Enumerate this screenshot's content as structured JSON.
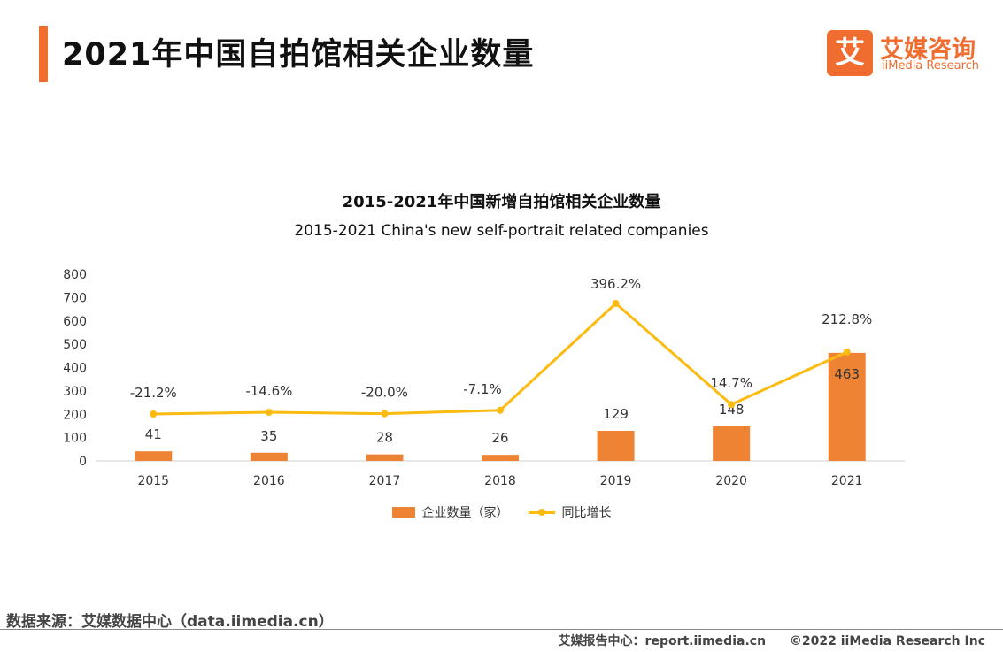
{
  "header": {
    "title": "2021年中国自拍馆相关企业数量"
  },
  "brand": {
    "mark": "艾",
    "name_cn": "艾媒咨询",
    "name_en": "iiMedia Research"
  },
  "chart_data": {
    "type": "bar",
    "title": "2015-2021年中国新增自拍馆相关企业数量",
    "subtitle": "2015-2021 China's new self-portrait related companies",
    "categories": [
      "2015",
      "2016",
      "2017",
      "2018",
      "2019",
      "2020",
      "2021"
    ],
    "ylim": [
      0,
      800
    ],
    "yticks": [
      0,
      100,
      200,
      300,
      400,
      500,
      600,
      700,
      800
    ],
    "series": [
      {
        "name": "企业数量（家）",
        "kind": "bar",
        "values": [
          41,
          35,
          28,
          26,
          129,
          148,
          463
        ],
        "color": "#ef8334"
      },
      {
        "name": "同比增长",
        "kind": "line",
        "values": [
          -21.2,
          -14.6,
          -20.0,
          -7.1,
          396.2,
          14.7,
          212.8
        ],
        "labels": [
          "-21.2%",
          "-14.6%",
          "-20.0%",
          "-7.1%",
          "396.2%",
          "14.7%",
          "212.8%"
        ],
        "color": "#fbbb10"
      }
    ],
    "legend": "bottom",
    "grid": false
  },
  "footer": {
    "source": "数据来源：艾媒数据中心（data.iimedia.cn）",
    "report": "艾媒报告中心：report.iimedia.cn",
    "copyright": "©2022  iiMedia Research  Inc"
  }
}
